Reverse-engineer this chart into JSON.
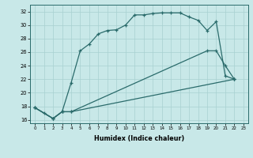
{
  "xlabel": "Humidex (Indice chaleur)",
  "bg_color": "#c8e8e8",
  "line_color": "#2a6b6b",
  "grid_color": "#a8d0d0",
  "xlim": [
    -0.5,
    23.5
  ],
  "ylim": [
    15.5,
    33.0
  ],
  "xticks": [
    0,
    1,
    2,
    3,
    4,
    5,
    6,
    7,
    8,
    9,
    10,
    11,
    12,
    13,
    14,
    15,
    16,
    17,
    18,
    19,
    20,
    21,
    22,
    23
  ],
  "yticks": [
    16,
    18,
    20,
    22,
    24,
    26,
    28,
    30,
    32
  ],
  "curves": [
    {
      "x": [
        0,
        1,
        2,
        3,
        4,
        5,
        6,
        7,
        8,
        9,
        10,
        11,
        12,
        13,
        14,
        15,
        16,
        17,
        18,
        19,
        20,
        21,
        22
      ],
      "y": [
        17.8,
        17.0,
        16.2,
        17.2,
        21.5,
        26.2,
        27.2,
        28.7,
        29.2,
        29.3,
        30.0,
        31.5,
        31.5,
        31.7,
        31.8,
        31.8,
        31.8,
        31.2,
        30.7,
        29.2,
        30.5,
        22.5,
        22.0
      ]
    },
    {
      "x": [
        0,
        2,
        3,
        4,
        19,
        20,
        21,
        22
      ],
      "y": [
        17.8,
        16.2,
        17.2,
        17.2,
        26.2,
        26.2,
        24.0,
        22.0
      ]
    },
    {
      "x": [
        0,
        2,
        3,
        4,
        22
      ],
      "y": [
        17.8,
        16.2,
        17.2,
        17.2,
        22.0
      ]
    }
  ]
}
